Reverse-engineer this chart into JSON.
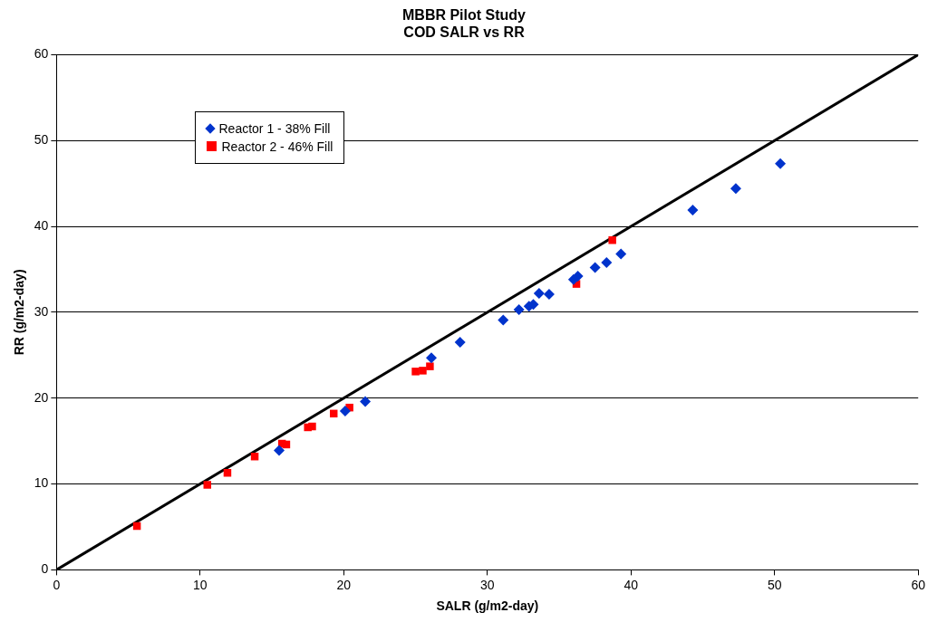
{
  "chart_data": {
    "type": "scatter",
    "title": "MBBR Pilot Study",
    "subtitle": "COD SALR vs RR",
    "xlabel": "SALR (g/m2-day)",
    "ylabel": "RR (g/m2-day)",
    "xlim": [
      0,
      60
    ],
    "ylim": [
      0,
      60
    ],
    "xticks": [
      0,
      10,
      20,
      30,
      40,
      50,
      60
    ],
    "yticks": [
      0,
      10,
      20,
      30,
      40,
      50,
      60
    ],
    "grid": "y",
    "legend": "top left",
    "series": [
      {
        "name": "Reactor 1 - 38% Fill",
        "color": "#0033cc",
        "marker": "diamond",
        "x": [
          15.5,
          20.1,
          21.4,
          21.5,
          26.1,
          28.1,
          31.1,
          32.2,
          32.9,
          33.2,
          33.6,
          34.3,
          36.0,
          36.3,
          37.5,
          38.3,
          39.3,
          44.3,
          47.3,
          50.4
        ],
        "values": [
          13.9,
          18.5,
          null,
          19.6,
          24.7,
          26.5,
          29.1,
          30.3,
          30.7,
          30.9,
          32.2,
          32.1,
          33.8,
          34.2,
          35.2,
          35.8,
          36.8,
          41.9,
          44.4,
          47.3
        ]
      },
      {
        "name": "Reactor 2 - 46% Fill",
        "color": "#ff0000",
        "marker": "square",
        "x": [
          5.6,
          10.5,
          11.9,
          13.8,
          15.7,
          16.0,
          17.5,
          17.8,
          19.3,
          20.0,
          20.4,
          25.0,
          25.5,
          26.0,
          36.2,
          38.7
        ],
        "values": [
          5.1,
          9.9,
          11.3,
          13.2,
          14.7,
          14.6,
          16.6,
          16.7,
          18.2,
          null,
          18.9,
          23.1,
          23.2,
          23.7,
          33.3,
          38.4
        ]
      },
      {
        "type": "line",
        "color": "#000000",
        "marker": "none",
        "line_style": "solid",
        "x": [
          0,
          60
        ],
        "values": [
          0,
          60
        ]
      }
    ]
  }
}
